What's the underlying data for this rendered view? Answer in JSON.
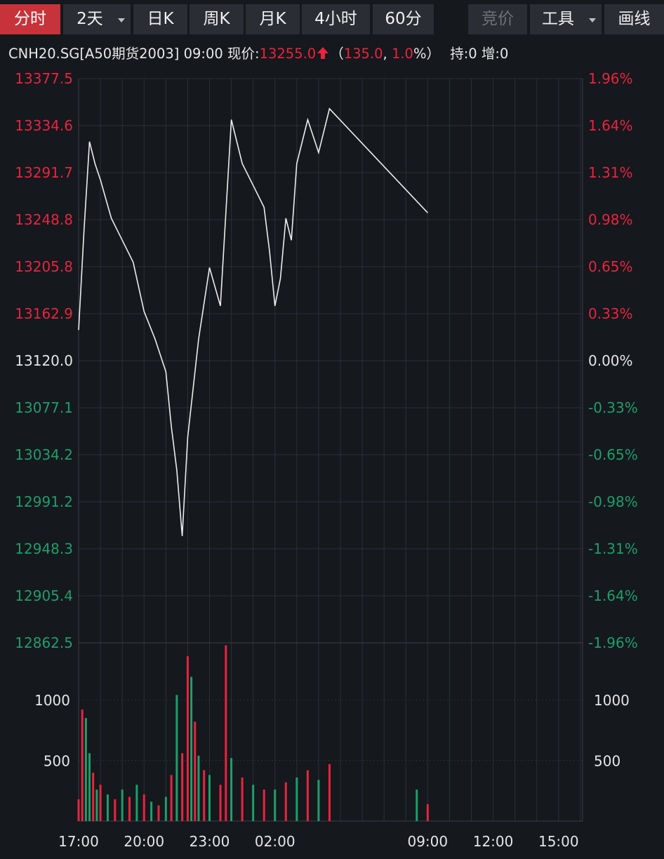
{
  "toolbar": {
    "tabs": [
      {
        "label": "分时",
        "active": true
      },
      {
        "label": "2天",
        "dropdown": true
      },
      {
        "label": "日K"
      },
      {
        "label": "周K"
      },
      {
        "label": "月K"
      },
      {
        "label": "4小时"
      },
      {
        "label": "60分"
      },
      {
        "label": "竞价",
        "disabled": true
      },
      {
        "label": "工具",
        "dropdown": true
      },
      {
        "label": "画线"
      }
    ]
  },
  "info": {
    "symbol": "CNH20.SG[A50期货2003]",
    "time": "09:00",
    "price_label": "现价:",
    "price": "13255.0",
    "change_open": "（",
    "change": "135.0",
    "change_sep": ", ",
    "change_pct": "1.0",
    "change_close": "%）",
    "hold": "持:0",
    "add": "增:0"
  },
  "colors": {
    "up": "#e9243f",
    "down": "#1f9e6a",
    "flat": "#e6e6e6",
    "line": "#ededed",
    "grid": "#2c3036",
    "background": "#15181d",
    "active_tab": "#c8323a"
  },
  "chart_data": {
    "type": "line",
    "price_axis": {
      "base": 13120.0,
      "ylim": [
        12862.5,
        13377.5
      ],
      "left_labels": [
        "13377.5",
        "13334.6",
        "13291.7",
        "13248.8",
        "13205.8",
        "13162.9",
        "13120.0",
        "13077.1",
        "13034.2",
        "12991.2",
        "12948.3",
        "12905.4",
        "12862.5"
      ],
      "right_labels": [
        "1.96%",
        "1.64%",
        "1.31%",
        "0.98%",
        "0.65%",
        "0.33%",
        "0.00%",
        "-0.33%",
        "-0.65%",
        "-0.98%",
        "-1.31%",
        "-1.64%",
        "-1.96%"
      ]
    },
    "time_axis": {
      "ticks": [
        "17:00",
        "20:00",
        "23:00",
        "02:00",
        "09:00",
        "12:00",
        "15:00"
      ]
    },
    "price": {
      "x": [
        "17:00",
        "17:15",
        "17:30",
        "17:45",
        "18:00",
        "18:30",
        "19:00",
        "19:30",
        "20:00",
        "20:30",
        "21:00",
        "21:15",
        "21:30",
        "21:45",
        "22:00",
        "22:30",
        "23:00",
        "23:30",
        "23:45",
        "00:00",
        "00:30",
        "01:00",
        "01:30",
        "01:45",
        "02:00",
        "02:15",
        "02:30",
        "02:45",
        "03:00",
        "03:30",
        "04:00",
        "04:30",
        "09:00"
      ],
      "values": [
        13148,
        13240,
        13320,
        13300,
        13285,
        13250,
        13230,
        13210,
        13165,
        13140,
        13110,
        13060,
        13020,
        12960,
        13050,
        13140,
        13205,
        13170,
        13255,
        13340,
        13300,
        13280,
        13260,
        13220,
        13170,
        13195,
        13250,
        13230,
        13300,
        13340,
        13310,
        13350,
        13255
      ]
    },
    "volume": {
      "yticks": [
        500,
        1000
      ],
      "ymax": 1470,
      "bars": [
        {
          "x": "17:00",
          "v": 180,
          "d": "up"
        },
        {
          "x": "17:10",
          "v": 920,
          "d": "up"
        },
        {
          "x": "17:20",
          "v": 850,
          "d": "down"
        },
        {
          "x": "17:30",
          "v": 560,
          "d": "down"
        },
        {
          "x": "17:40",
          "v": 400,
          "d": "up"
        },
        {
          "x": "17:50",
          "v": 260,
          "d": "down"
        },
        {
          "x": "18:00",
          "v": 300,
          "d": "up"
        },
        {
          "x": "18:20",
          "v": 220,
          "d": "down"
        },
        {
          "x": "18:40",
          "v": 180,
          "d": "up"
        },
        {
          "x": "19:00",
          "v": 260,
          "d": "down"
        },
        {
          "x": "19:20",
          "v": 200,
          "d": "up"
        },
        {
          "x": "19:40",
          "v": 300,
          "d": "down"
        },
        {
          "x": "20:00",
          "v": 220,
          "d": "up"
        },
        {
          "x": "20:20",
          "v": 160,
          "d": "down"
        },
        {
          "x": "20:40",
          "v": 130,
          "d": "up"
        },
        {
          "x": "21:00",
          "v": 200,
          "d": "down"
        },
        {
          "x": "21:15",
          "v": 380,
          "d": "up"
        },
        {
          "x": "21:30",
          "v": 1040,
          "d": "down"
        },
        {
          "x": "21:45",
          "v": 560,
          "d": "up"
        },
        {
          "x": "22:00",
          "v": 1360,
          "d": "up"
        },
        {
          "x": "22:10",
          "v": 1190,
          "d": "down"
        },
        {
          "x": "22:20",
          "v": 820,
          "d": "up"
        },
        {
          "x": "22:30",
          "v": 540,
          "d": "down"
        },
        {
          "x": "22:45",
          "v": 420,
          "d": "up"
        },
        {
          "x": "23:00",
          "v": 380,
          "d": "down"
        },
        {
          "x": "23:30",
          "v": 300,
          "d": "up"
        },
        {
          "x": "23:45",
          "v": 1450,
          "d": "up"
        },
        {
          "x": "00:00",
          "v": 520,
          "d": "down"
        },
        {
          "x": "00:30",
          "v": 360,
          "d": "up"
        },
        {
          "x": "01:00",
          "v": 300,
          "d": "down"
        },
        {
          "x": "01:30",
          "v": 260,
          "d": "up"
        },
        {
          "x": "02:00",
          "v": 260,
          "d": "down"
        },
        {
          "x": "02:30",
          "v": 320,
          "d": "up"
        },
        {
          "x": "03:00",
          "v": 360,
          "d": "down"
        },
        {
          "x": "03:30",
          "v": 420,
          "d": "up"
        },
        {
          "x": "04:00",
          "v": 340,
          "d": "down"
        },
        {
          "x": "04:30",
          "v": 470,
          "d": "up"
        },
        {
          "x": "08:30",
          "v": 260,
          "d": "down"
        },
        {
          "x": "09:00",
          "v": 140,
          "d": "up"
        }
      ]
    }
  }
}
